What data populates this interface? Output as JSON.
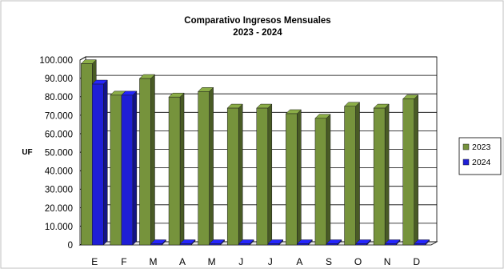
{
  "chart_data": {
    "type": "bar",
    "title": "Comparativo Ingresos Mensuales",
    "subtitle": "2023 - 2024",
    "ylabel": "UF",
    "xlabel": "",
    "ylim": [
      0,
      100000
    ],
    "ytick_labels": [
      "0",
      "10.000",
      "20.000",
      "30.000",
      "40.000",
      "50.000",
      "60.000",
      "70.000",
      "80.000",
      "90.000",
      "100.000"
    ],
    "categories": [
      "E",
      "F",
      "M",
      "A",
      "M",
      "J",
      "J",
      "A",
      "S",
      "O",
      "N",
      "D"
    ],
    "series": [
      {
        "name": "2023",
        "color": "#76933c",
        "values": [
          98000,
          81000,
          90000,
          80000,
          83000,
          74000,
          74000,
          71000,
          68500,
          75000,
          74000,
          79000
        ]
      },
      {
        "name": "2024",
        "color": "#1f1fd6",
        "values": [
          87000,
          81000,
          0,
          0,
          0,
          0,
          0,
          0,
          0,
          0,
          0,
          0
        ]
      }
    ],
    "grid": true,
    "legend_position": "right"
  }
}
